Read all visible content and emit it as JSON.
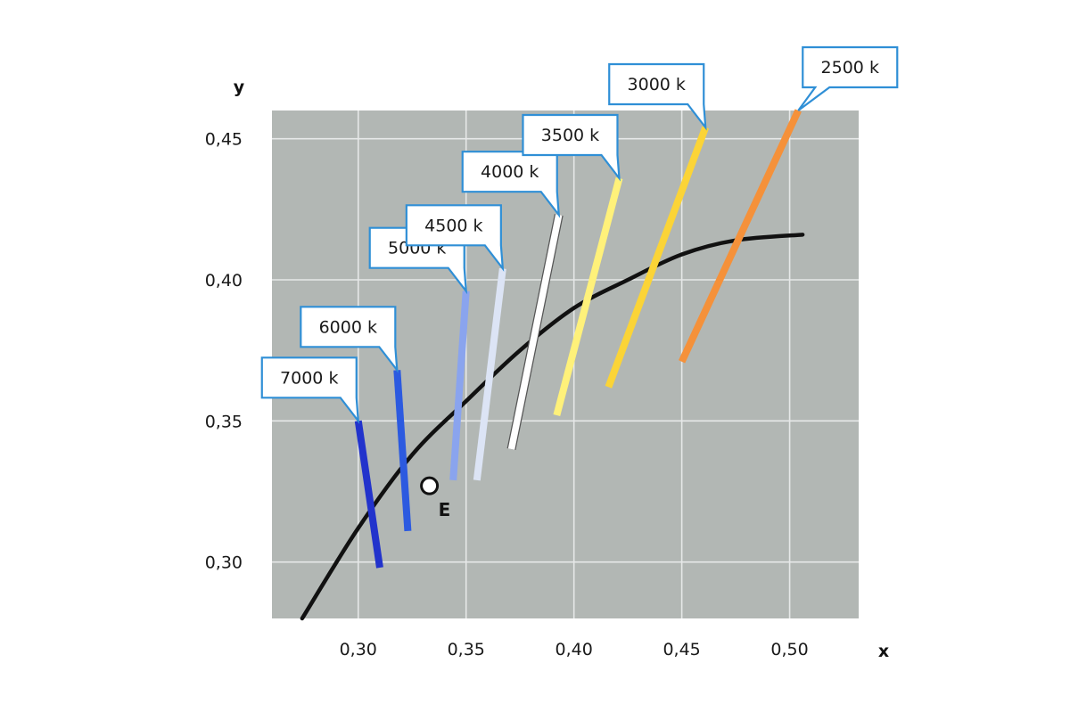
{
  "chart_data": {
    "type": "line",
    "xlabel": "x",
    "ylabel": "y",
    "xlim": [
      0.26,
      0.532
    ],
    "ylim": [
      0.28,
      0.46
    ],
    "x_ticks": [
      0.3,
      0.35,
      0.4,
      0.45,
      0.5
    ],
    "y_ticks": [
      0.3,
      0.35,
      0.4,
      0.45
    ],
    "x_tick_labels": [
      "0,30",
      "0,35",
      "0,40",
      "0,45",
      "0,50"
    ],
    "y_tick_labels": [
      "0,30",
      "0,35",
      "0,40",
      "0,45"
    ],
    "grid": true,
    "plot_background": "#b2b7b4",
    "grid_color": "#e6e8e8",
    "planckian_locus": {
      "color": "#111111",
      "points": [
        [
          0.274,
          0.28
        ],
        [
          0.3,
          0.312
        ],
        [
          0.325,
          0.338
        ],
        [
          0.35,
          0.357
        ],
        [
          0.375,
          0.375
        ],
        [
          0.4,
          0.39
        ],
        [
          0.425,
          0.4
        ],
        [
          0.45,
          0.409
        ],
        [
          0.475,
          0.414
        ],
        [
          0.506,
          0.416
        ]
      ]
    },
    "isotherms": [
      {
        "label": "7000 k",
        "color": "#2233cc",
        "start": [
          0.3,
          0.35
        ],
        "end": [
          0.31,
          0.298
        ],
        "callout_side": "left"
      },
      {
        "label": "6000 k",
        "color": "#2c5ae0",
        "start": [
          0.318,
          0.368
        ],
        "end": [
          0.323,
          0.311
        ],
        "callout_side": "left"
      },
      {
        "label": "5000 k",
        "color": "#8aa4ee",
        "start": [
          0.35,
          0.396
        ],
        "end": [
          0.344,
          0.329
        ],
        "callout_side": "left"
      },
      {
        "label": "4500 k",
        "color": "#dce4f5",
        "start": [
          0.367,
          0.404
        ],
        "end": [
          0.355,
          0.329
        ],
        "callout_side": "left"
      },
      {
        "label": "4000 k",
        "color": "#ffffff",
        "start": [
          0.393,
          0.423
        ],
        "end": [
          0.371,
          0.34
        ],
        "callout_side": "left"
      },
      {
        "label": "3500 k",
        "color": "#fff17a",
        "start": [
          0.421,
          0.436
        ],
        "end": [
          0.392,
          0.352
        ],
        "callout_side": "left"
      },
      {
        "label": "3000 k",
        "color": "#fbd437",
        "start": [
          0.461,
          0.454
        ],
        "end": [
          0.416,
          0.362
        ],
        "callout_side": "left"
      },
      {
        "label": "2500 k",
        "color": "#f5913a",
        "start": [
          0.504,
          0.46
        ],
        "end": [
          0.45,
          0.371
        ],
        "callout_side": "right"
      }
    ],
    "reference_point": {
      "label": "E",
      "x": 0.333,
      "y": 0.327
    }
  },
  "callout_border_color": "#2f8fd6"
}
